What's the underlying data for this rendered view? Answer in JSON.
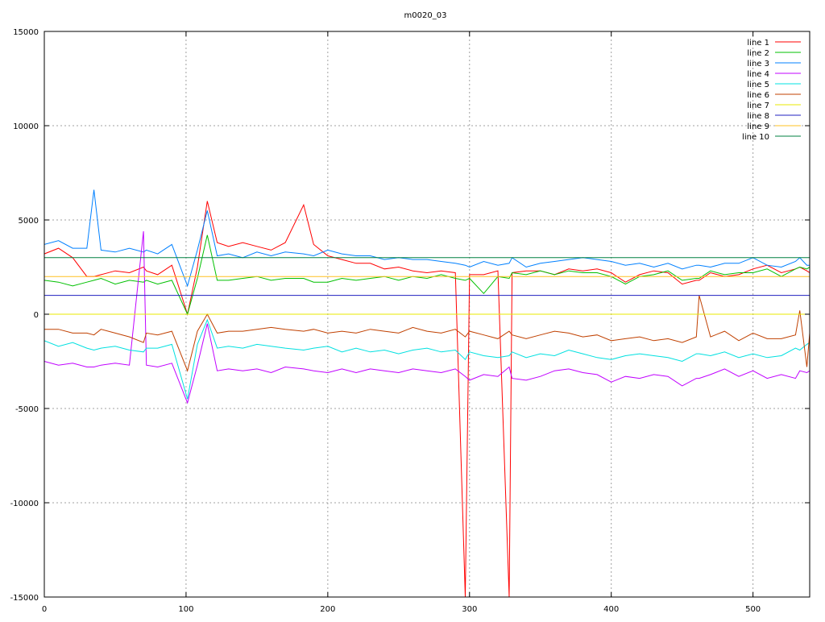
{
  "chart_data": {
    "type": "line",
    "title": "m0020_03",
    "xlabel": "",
    "ylabel": "",
    "xlim": [
      0,
      540
    ],
    "ylim": [
      -15000,
      15000
    ],
    "xticks": [
      0,
      100,
      200,
      300,
      400,
      500
    ],
    "yticks": [
      -15000,
      -10000,
      -5000,
      0,
      5000,
      10000,
      15000
    ],
    "grid": true,
    "legend_position": "top-right",
    "x": [
      0,
      10,
      20,
      30,
      35,
      40,
      50,
      60,
      70,
      72,
      80,
      90,
      101,
      108,
      115,
      122,
      130,
      140,
      150,
      160,
      170,
      183,
      190,
      200,
      210,
      220,
      230,
      240,
      250,
      260,
      270,
      280,
      290,
      297,
      300,
      310,
      320,
      328,
      330,
      340,
      350,
      360,
      370,
      380,
      390,
      400,
      410,
      420,
      430,
      440,
      450,
      460,
      462,
      470,
      480,
      490,
      500,
      510,
      520,
      530,
      533,
      538,
      540
    ],
    "series": [
      {
        "name": "line 1",
        "color": "#ff0000",
        "values": [
          3200,
          3500,
          3000,
          2000,
          2000,
          2100,
          2300,
          2200,
          2500,
          2300,
          2100,
          2600,
          0,
          2500,
          6000,
          3800,
          3600,
          3800,
          3600,
          3400,
          3800,
          5800,
          3700,
          3100,
          2900,
          2700,
          2700,
          2400,
          2500,
          2300,
          2200,
          2300,
          2200,
          -15000,
          2100,
          2100,
          2300,
          -15000,
          2200,
          2300,
          2300,
          2100,
          2400,
          2300,
          2400,
          2200,
          1700,
          2100,
          2300,
          2200,
          1600,
          1800,
          1800,
          2200,
          2000,
          2100,
          2400,
          2600,
          2200,
          2400,
          2500,
          2300,
          2200
        ]
      },
      {
        "name": "line 2",
        "color": "#00c000",
        "values": [
          1800,
          1700,
          1500,
          1700,
          1800,
          1900,
          1600,
          1800,
          1700,
          1800,
          1600,
          1800,
          0,
          1900,
          4200,
          1800,
          1800,
          1900,
          2000,
          1800,
          1900,
          1900,
          1700,
          1700,
          1900,
          1800,
          1900,
          2000,
          1800,
          2000,
          1900,
          2100,
          1900,
          1800,
          1900,
          1100,
          2000,
          1900,
          2200,
          2100,
          2300,
          2100,
          2300,
          2200,
          2200,
          2000,
          1600,
          2000,
          2100,
          2300,
          1800,
          1900,
          1900,
          2300,
          2100,
          2200,
          2200,
          2400,
          2000,
          2400,
          2500,
          2400,
          2500
        ]
      },
      {
        "name": "line 3",
        "color": "#0080ff",
        "values": [
          3700,
          3900,
          3500,
          3500,
          6600,
          3400,
          3300,
          3500,
          3300,
          3400,
          3200,
          3700,
          1500,
          3400,
          5500,
          3100,
          3200,
          3000,
          3300,
          3100,
          3300,
          3200,
          3100,
          3400,
          3200,
          3100,
          3100,
          2900,
          3000,
          2900,
          2900,
          2800,
          2700,
          2600,
          2500,
          2800,
          2600,
          2700,
          3000,
          2500,
          2700,
          2800,
          2900,
          3000,
          2900,
          2800,
          2600,
          2700,
          2500,
          2700,
          2400,
          2600,
          2600,
          2500,
          2700,
          2700,
          3000,
          2600,
          2500,
          2800,
          3000,
          2600,
          2600
        ]
      },
      {
        "name": "line 4",
        "color": "#c000ff",
        "values": [
          -2500,
          -2700,
          -2600,
          -2800,
          -2800,
          -2700,
          -2600,
          -2700,
          4400,
          -2700,
          -2800,
          -2600,
          -4700,
          -2700,
          -500,
          -3000,
          -2900,
          -3000,
          -2900,
          -3100,
          -2800,
          -2900,
          -3000,
          -3100,
          -2900,
          -3100,
          -2900,
          -3000,
          -3100,
          -2900,
          -3000,
          -3100,
          -2900,
          -3300,
          -3500,
          -3200,
          -3300,
          -2800,
          -3400,
          -3500,
          -3300,
          -3000,
          -2900,
          -3100,
          -3200,
          -3600,
          -3300,
          -3400,
          -3200,
          -3300,
          -3800,
          -3400,
          -3400,
          -3200,
          -2900,
          -3300,
          -3000,
          -3400,
          -3200,
          -3400,
          -3000,
          -3100,
          -3000
        ]
      },
      {
        "name": "line 5",
        "color": "#00e0e0",
        "values": [
          -1400,
          -1700,
          -1500,
          -1800,
          -1900,
          -1800,
          -1700,
          -1900,
          -2000,
          -1800,
          -1800,
          -1600,
          -4500,
          -1600,
          -300,
          -1800,
          -1700,
          -1800,
          -1600,
          -1700,
          -1800,
          -1900,
          -1800,
          -1700,
          -2000,
          -1800,
          -2000,
          -1900,
          -2100,
          -1900,
          -1800,
          -2000,
          -1900,
          -2400,
          -2000,
          -2200,
          -2300,
          -2200,
          -2000,
          -2300,
          -2100,
          -2200,
          -1900,
          -2100,
          -2300,
          -2400,
          -2200,
          -2100,
          -2200,
          -2300,
          -2500,
          -2100,
          -2100,
          -2200,
          -2000,
          -2300,
          -2100,
          -2300,
          -2200,
          -1800,
          -1900,
          -1600,
          -1500
        ]
      },
      {
        "name": "line 6",
        "color": "#c04000",
        "values": [
          -800,
          -800,
          -1000,
          -1000,
          -1100,
          -800,
          -1000,
          -1200,
          -1500,
          -1000,
          -1100,
          -900,
          -3000,
          -900,
          0,
          -1000,
          -900,
          -900,
          -800,
          -700,
          -800,
          -900,
          -800,
          -1000,
          -900,
          -1000,
          -800,
          -900,
          -1000,
          -700,
          -900,
          -1000,
          -800,
          -1200,
          -900,
          -1100,
          -1300,
          -900,
          -1100,
          -1300,
          -1100,
          -900,
          -1000,
          -1200,
          -1100,
          -1400,
          -1300,
          -1200,
          -1400,
          -1300,
          -1500,
          -1200,
          1000,
          -1200,
          -900,
          -1400,
          -1000,
          -1300,
          -1300,
          -1100,
          200,
          -2800,
          -1000
        ]
      },
      {
        "name": "line 7",
        "color": "#e8e800",
        "constant": 0
      },
      {
        "name": "line 8",
        "color": "#2020c0",
        "constant": 1000
      },
      {
        "name": "line 9",
        "color": "#ffc020",
        "constant": 2000
      },
      {
        "name": "line 10",
        "color": "#008040",
        "constant": 3000
      }
    ]
  }
}
